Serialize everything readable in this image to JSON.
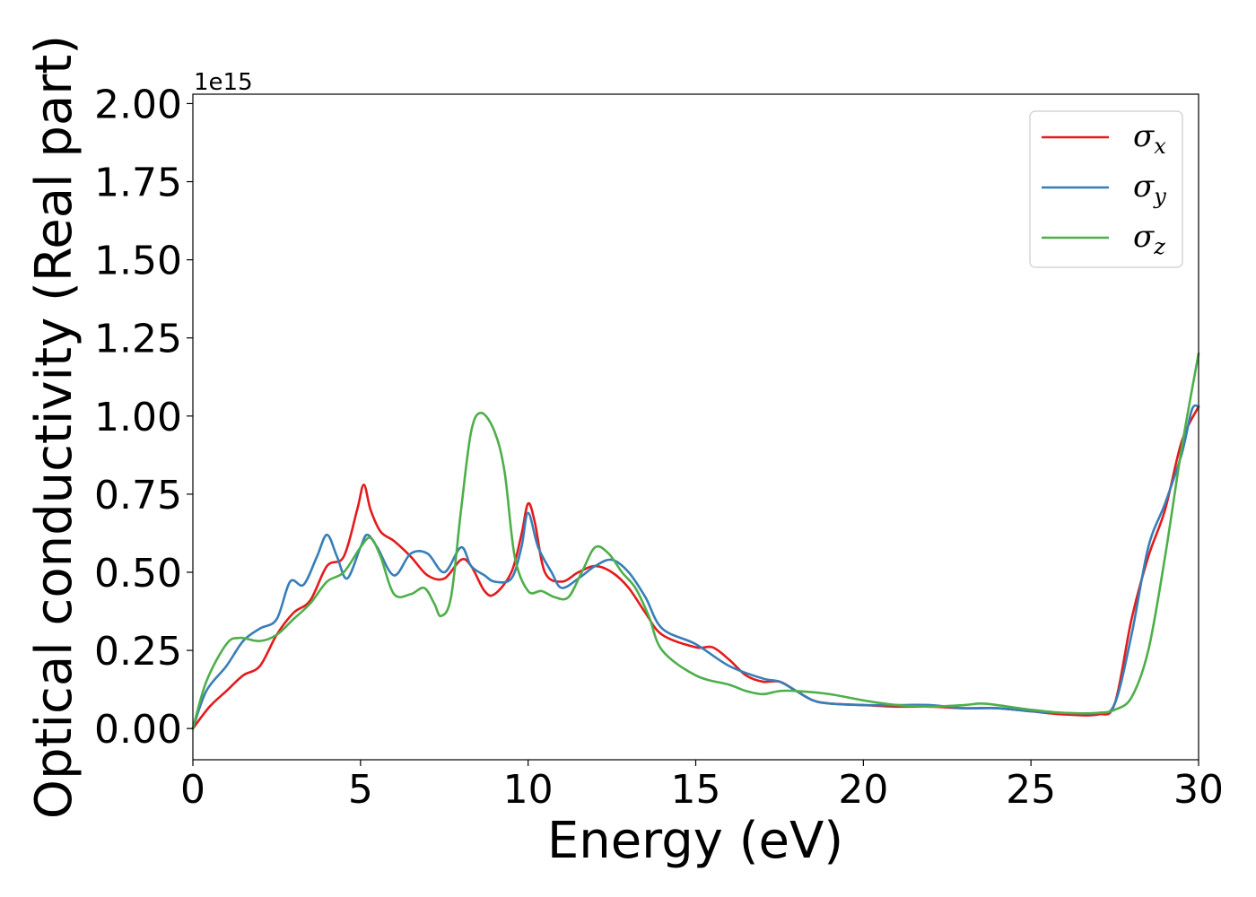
{
  "chart_data": {
    "type": "line",
    "xlabel": "Energy (eV)",
    "ylabel": "Optical conductivity (Real part)",
    "y_offset_text": "1e15",
    "xlim": [
      0,
      30
    ],
    "ylim": [
      -0.1,
      2.03
    ],
    "x_ticks": [
      0,
      5,
      10,
      15,
      20,
      25,
      30
    ],
    "x_tick_labels": [
      "0",
      "5",
      "10",
      "15",
      "20",
      "25",
      "30"
    ],
    "y_ticks": [
      0.0,
      0.25,
      0.5,
      0.75,
      1.0,
      1.25,
      1.5,
      1.75,
      2.0
    ],
    "y_tick_labels": [
      "0.00",
      "0.25",
      "0.50",
      "0.75",
      "1.00",
      "1.25",
      "1.50",
      "1.75",
      "2.00"
    ],
    "grid": false,
    "legend_position": "top-right",
    "series": [
      {
        "name": "σx",
        "symbol": "σ",
        "subscript": "x",
        "color": "#e41a1c",
        "x": [
          0,
          0.5,
          1,
          1.5,
          2,
          2.5,
          3,
          3.5,
          4,
          4.5,
          4.9,
          5.1,
          5.3,
          5.6,
          6,
          6.5,
          7,
          7.5,
          8,
          8.3,
          8.7,
          9,
          9.5,
          9.8,
          10,
          10.2,
          10.5,
          11,
          11.5,
          12,
          12.5,
          13,
          13.5,
          14,
          15,
          15.5,
          16,
          16.5,
          17,
          17.5,
          18,
          18.5,
          19,
          20,
          21,
          22,
          23,
          24,
          25,
          26,
          27,
          27.5,
          28,
          28.5,
          29,
          29.5,
          30
        ],
        "y": [
          0,
          0.07,
          0.12,
          0.17,
          0.2,
          0.3,
          0.37,
          0.41,
          0.52,
          0.55,
          0.7,
          0.78,
          0.7,
          0.63,
          0.6,
          0.55,
          0.49,
          0.48,
          0.54,
          0.52,
          0.44,
          0.43,
          0.5,
          0.62,
          0.72,
          0.66,
          0.5,
          0.47,
          0.5,
          0.52,
          0.5,
          0.45,
          0.37,
          0.3,
          0.26,
          0.26,
          0.22,
          0.17,
          0.15,
          0.15,
          0.12,
          0.09,
          0.08,
          0.075,
          0.07,
          0.07,
          0.065,
          0.065,
          0.055,
          0.045,
          0.045,
          0.08,
          0.35,
          0.55,
          0.7,
          0.92,
          1.03
        ]
      },
      {
        "name": "σy",
        "symbol": "σ",
        "subscript": "y",
        "color": "#377eb8",
        "x": [
          0,
          0.4,
          1,
          1.5,
          2,
          2.5,
          2.9,
          3.3,
          3.7,
          4,
          4.3,
          4.6,
          5,
          5.2,
          5.5,
          6,
          6.5,
          7,
          7.5,
          8,
          8.3,
          8.7,
          9,
          9.5,
          9.8,
          10,
          10.3,
          10.7,
          11,
          11.5,
          12,
          12.5,
          13,
          13.5,
          14,
          15,
          16,
          17,
          17.5,
          18,
          18.5,
          19,
          20,
          21,
          22,
          23,
          24,
          25,
          26,
          27,
          27.5,
          28,
          28.5,
          29,
          29.5,
          29.8,
          30
        ],
        "y": [
          0,
          0.12,
          0.2,
          0.28,
          0.32,
          0.35,
          0.47,
          0.46,
          0.55,
          0.62,
          0.55,
          0.48,
          0.58,
          0.62,
          0.58,
          0.49,
          0.56,
          0.56,
          0.5,
          0.58,
          0.52,
          0.49,
          0.47,
          0.48,
          0.58,
          0.69,
          0.58,
          0.5,
          0.45,
          0.48,
          0.52,
          0.54,
          0.5,
          0.42,
          0.32,
          0.27,
          0.2,
          0.16,
          0.15,
          0.12,
          0.09,
          0.08,
          0.075,
          0.075,
          0.075,
          0.065,
          0.065,
          0.055,
          0.05,
          0.05,
          0.08,
          0.3,
          0.58,
          0.72,
          0.88,
          1.02,
          1.03
        ]
      },
      {
        "name": "σz",
        "symbol": "σ",
        "subscript": "z",
        "color": "#4daf4a",
        "x": [
          0,
          0.4,
          1,
          1.4,
          2,
          2.5,
          3,
          3.5,
          4,
          4.5,
          5,
          5.3,
          5.6,
          6,
          6.5,
          6.9,
          7.2,
          7.4,
          7.7,
          8,
          8.3,
          8.6,
          9,
          9.3,
          9.6,
          10,
          10.4,
          10.8,
          11.2,
          11.6,
          12,
          12.4,
          12.8,
          13.2,
          13.6,
          14,
          15,
          16,
          16.5,
          17,
          17.5,
          18,
          19,
          20,
          21,
          22,
          23,
          23.5,
          24,
          25,
          26,
          27,
          27.5,
          28,
          28.5,
          29,
          29.5,
          30
        ],
        "y": [
          0,
          0.15,
          0.27,
          0.29,
          0.28,
          0.3,
          0.35,
          0.4,
          0.47,
          0.5,
          0.58,
          0.61,
          0.55,
          0.43,
          0.43,
          0.45,
          0.4,
          0.36,
          0.42,
          0.7,
          0.95,
          1.01,
          0.95,
          0.82,
          0.55,
          0.44,
          0.44,
          0.42,
          0.42,
          0.5,
          0.58,
          0.56,
          0.5,
          0.45,
          0.36,
          0.25,
          0.17,
          0.14,
          0.12,
          0.11,
          0.12,
          0.12,
          0.11,
          0.09,
          0.075,
          0.07,
          0.075,
          0.08,
          0.075,
          0.06,
          0.05,
          0.05,
          0.06,
          0.1,
          0.25,
          0.55,
          0.9,
          1.2
        ]
      }
    ]
  }
}
